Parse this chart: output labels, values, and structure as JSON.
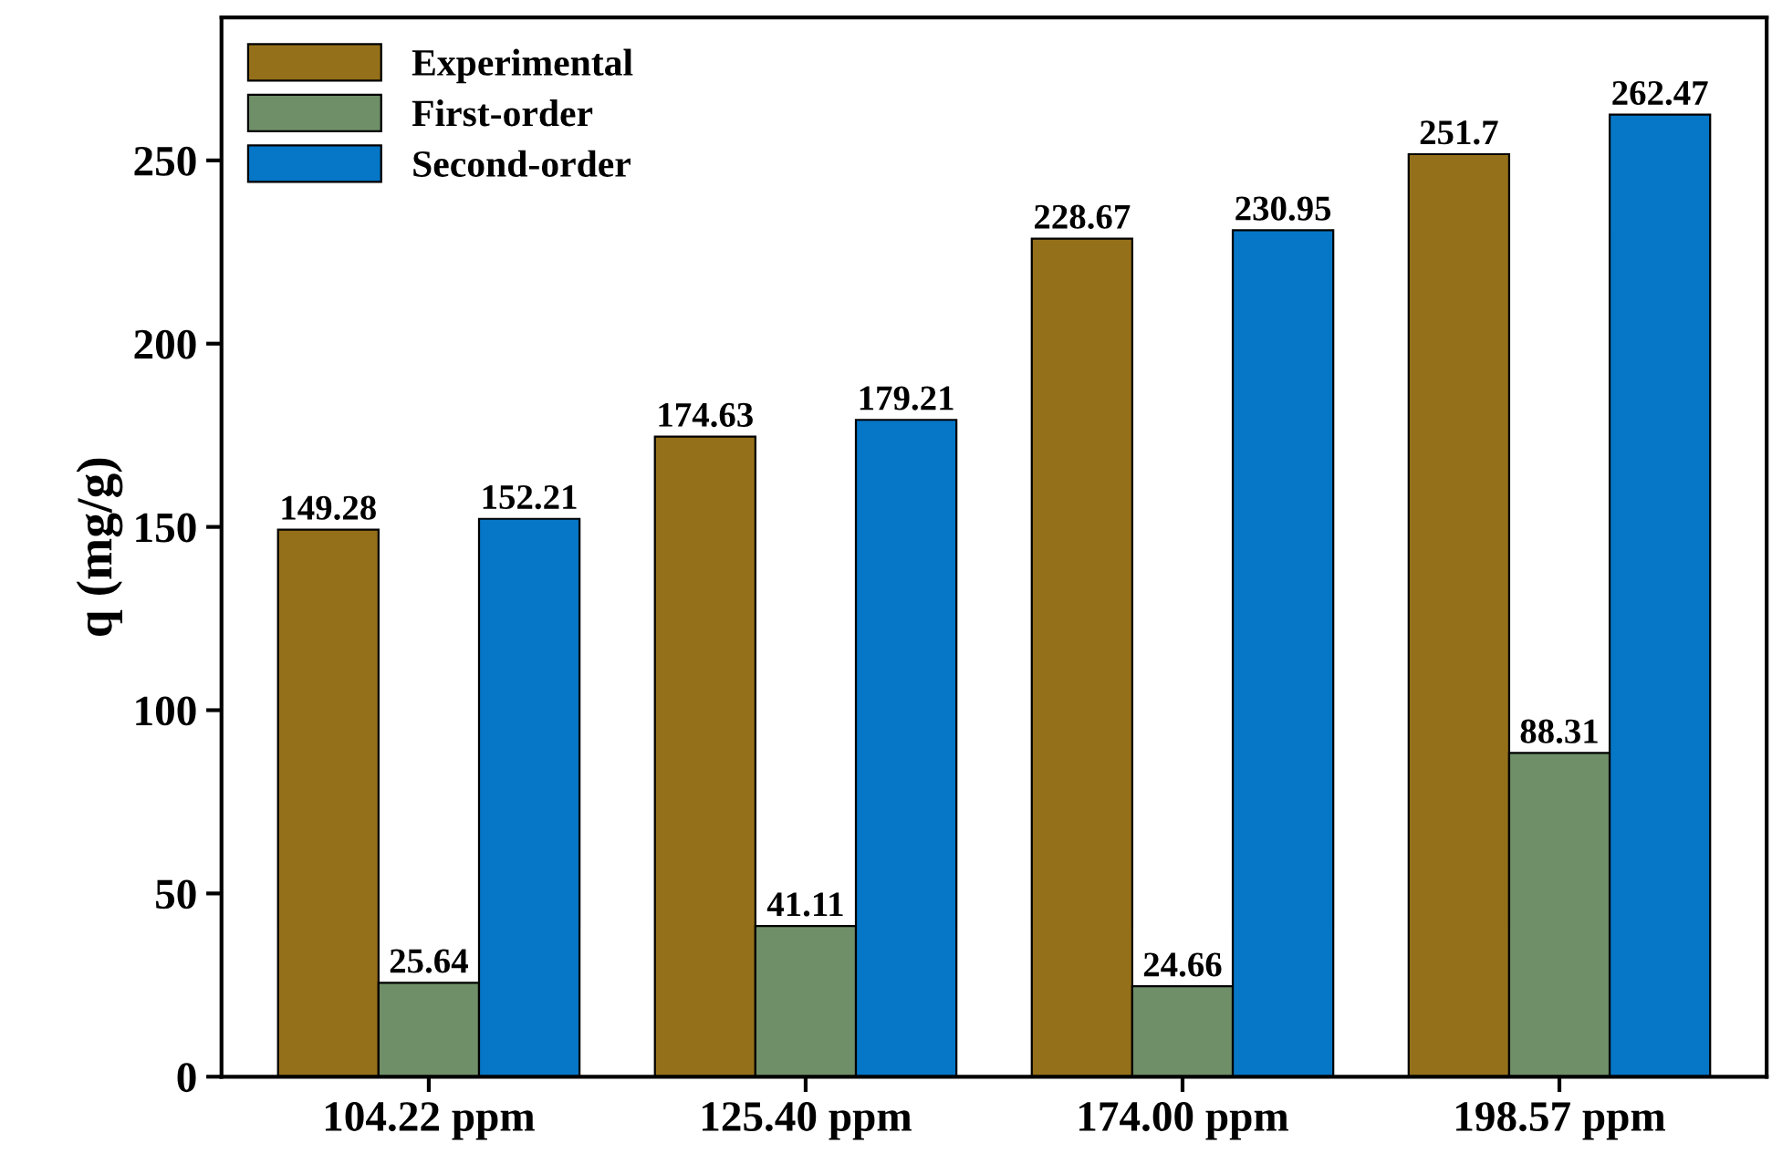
{
  "chart_data": {
    "type": "bar",
    "ylabel": "q (mg/g)",
    "categories": [
      "104.22 ppm",
      "125.40 ppm",
      "174.00 ppm",
      "198.57 ppm"
    ],
    "series": [
      {
        "name": "Experimental",
        "color": "#95701a",
        "values": [
          149.28,
          174.63,
          228.67,
          251.7
        ]
      },
      {
        "name": "First-order",
        "color": "#6f8f68",
        "values": [
          25.64,
          41.11,
          24.66,
          88.31
        ]
      },
      {
        "name": "Second-order",
        "color": "#0676c6",
        "values": [
          152.21,
          179.21,
          230.95,
          262.47
        ]
      }
    ],
    "ylim": [
      0,
      289
    ],
    "yticks": [
      0,
      50,
      100,
      150,
      200,
      250
    ],
    "data_labels": true,
    "legend": "top left",
    "grid": false
  }
}
